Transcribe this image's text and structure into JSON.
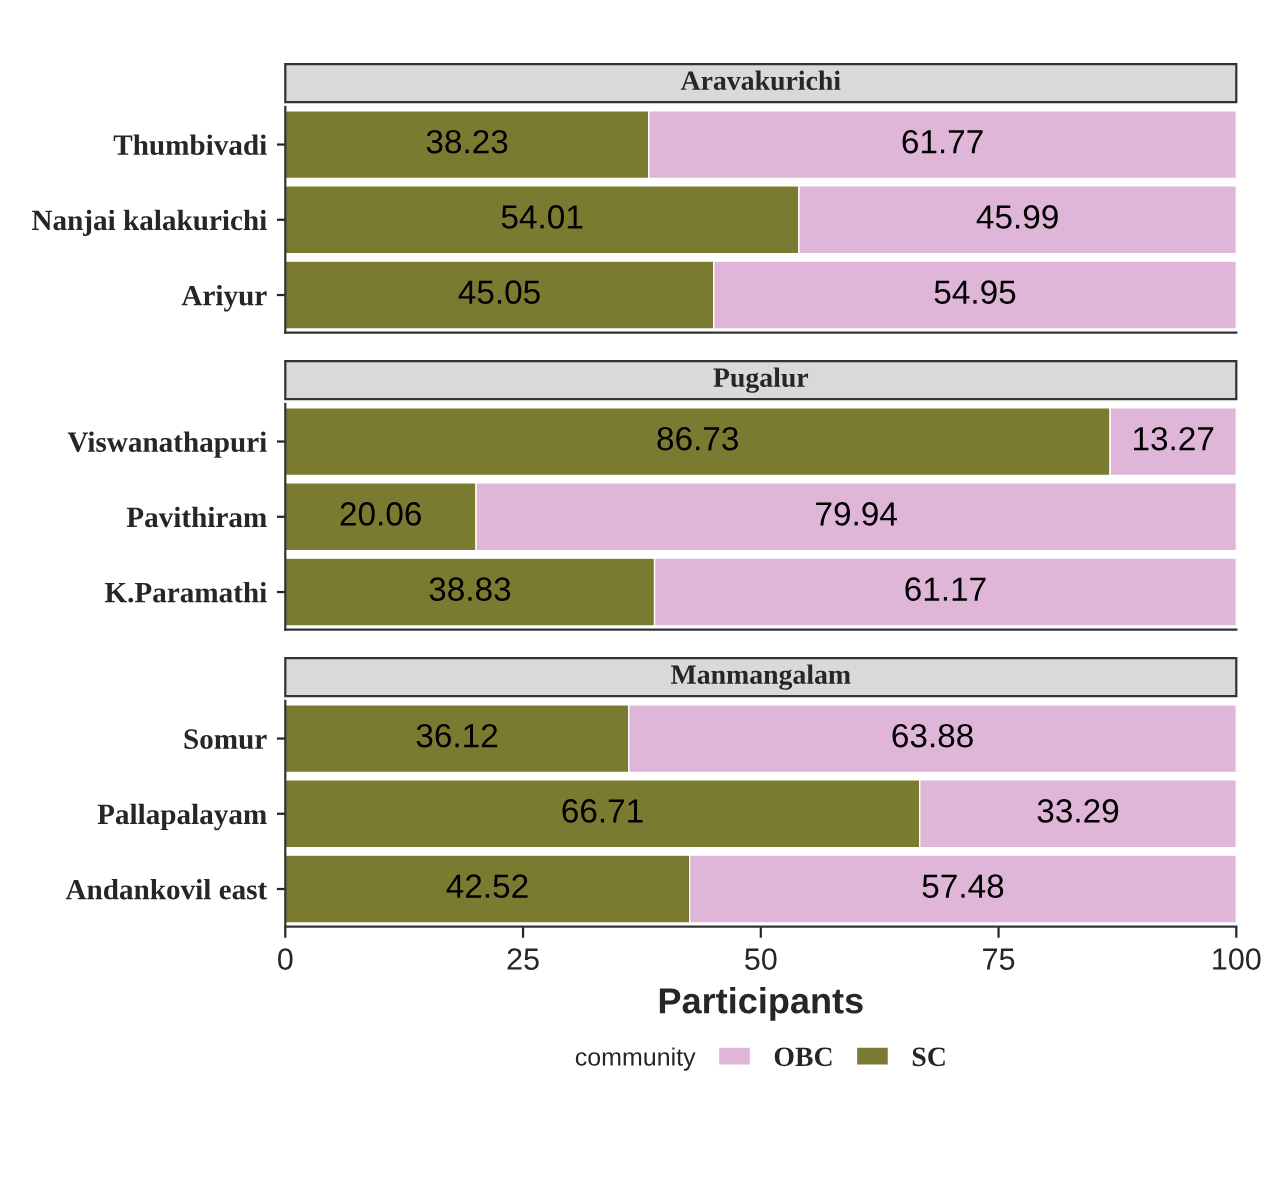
{
  "chart_data": [
    {
      "type": "bar",
      "orientation": "horizontal",
      "stacked": true,
      "title": "Aravakurichi",
      "categories": [
        "Thumbivadi",
        "Nanjai kalakurichi",
        "Ariyur"
      ],
      "series": [
        {
          "color": "#7a7a30",
          "values": [
            38.23,
            54.01,
            45.05
          ]
        },
        {
          "color": "#dfb5d8",
          "values": [
            61.77,
            45.99,
            54.95
          ]
        }
      ],
      "xlim": [
        0,
        100
      ],
      "xticks": [
        0,
        25,
        50,
        75,
        100
      ],
      "tick_labels": "y",
      "data_labels": true,
      "grid": false
    },
    {
      "type": "bar",
      "orientation": "horizontal",
      "stacked": true,
      "title": "Pugalur",
      "categories": [
        "Viswanathapuri",
        "Pavithiram",
        "K.Paramathi"
      ],
      "series": [
        {
          "color": "#7a7a30",
          "values": [
            86.73,
            20.06,
            38.83
          ]
        },
        {
          "color": "#dfb5d8",
          "values": [
            13.27,
            79.94,
            61.17
          ]
        }
      ],
      "xlim": [
        0,
        100
      ],
      "xticks": [
        0,
        25,
        50,
        75,
        100
      ],
      "tick_labels": "y",
      "data_labels": true,
      "grid": false
    },
    {
      "type": "bar",
      "orientation": "horizontal",
      "stacked": true,
      "title": "Manmangalam",
      "categories": [
        "Somur",
        "Pallapalayam",
        "Andankovil east"
      ],
      "series": [
        {
          "name": "SC",
          "color": "#7a7a30",
          "values": [
            36.12,
            66.71,
            42.52
          ]
        },
        {
          "name": "OBC",
          "color": "#dfb5d8",
          "values": [
            63.88,
            33.29,
            57.48
          ]
        }
      ],
      "xlim": [
        0,
        100
      ],
      "xticks": [
        0,
        25,
        50,
        75,
        100
      ],
      "xlabel": "Participants",
      "legend": "bottom",
      "legend_title": "community",
      "data_labels": true,
      "grid": false
    }
  ]
}
